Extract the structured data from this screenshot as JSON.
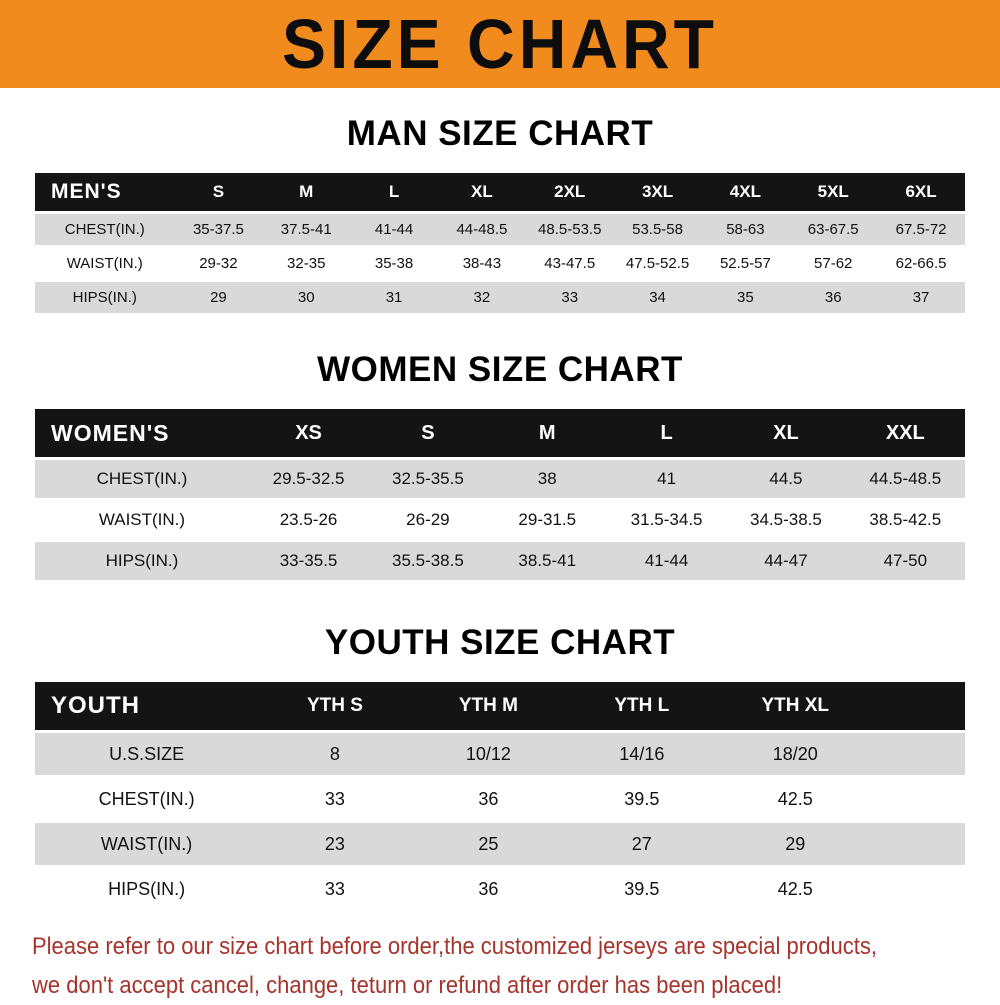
{
  "banner": {
    "title": "SIZE CHART",
    "bg_color": "#F28B1E",
    "text_color": "#0d0d0d"
  },
  "chart_data": [
    {
      "type": "table",
      "title": "MAN SIZE CHART",
      "header_label": "MEN'S",
      "columns": [
        "S",
        "M",
        "L",
        "XL",
        "2XL",
        "3XL",
        "4XL",
        "5XL",
        "6XL"
      ],
      "rows": [
        {
          "label": "CHEST(IN.)",
          "values": [
            "35-37.5",
            "37.5-41",
            "41-44",
            "44-48.5",
            "48.5-53.5",
            "53.5-58",
            "58-63",
            "63-67.5",
            "67.5-72"
          ]
        },
        {
          "label": "WAIST(IN.)",
          "values": [
            "29-32",
            "32-35",
            "35-38",
            "38-43",
            "43-47.5",
            "47.5-52.5",
            "52.5-57",
            "57-62",
            "62-66.5"
          ]
        },
        {
          "label": "HIPS(IN.)",
          "values": [
            "29",
            "30",
            "31",
            "32",
            "33",
            "34",
            "35",
            "36",
            "37"
          ]
        }
      ]
    },
    {
      "type": "table",
      "title": "WOMEN SIZE CHART",
      "header_label": "WOMEN'S",
      "columns": [
        "XS",
        "S",
        "M",
        "L",
        "XL",
        "XXL"
      ],
      "rows": [
        {
          "label": "CHEST(IN.)",
          "values": [
            "29.5-32.5",
            "32.5-35.5",
            "38",
            "41",
            "44.5",
            "44.5-48.5"
          ]
        },
        {
          "label": "WAIST(IN.)",
          "values": [
            "23.5-26",
            "26-29",
            "29-31.5",
            "31.5-34.5",
            "34.5-38.5",
            "38.5-42.5"
          ]
        },
        {
          "label": "HIPS(IN.)",
          "values": [
            "33-35.5",
            "35.5-38.5",
            "38.5-41",
            "41-44",
            "44-47",
            "47-50"
          ]
        }
      ]
    },
    {
      "type": "table",
      "title": "YOUTH SIZE CHART",
      "header_label": "YOUTH",
      "columns": [
        "YTH S",
        "YTH M",
        "YTH L",
        "YTH XL"
      ],
      "rows": [
        {
          "label": "U.S.SIZE",
          "values": [
            "8",
            "10/12",
            "14/16",
            "18/20"
          ]
        },
        {
          "label": "CHEST(IN.)",
          "values": [
            "33",
            "36",
            "39.5",
            "42.5"
          ]
        },
        {
          "label": "WAIST(IN.)",
          "values": [
            "23",
            "25",
            "27",
            "29"
          ]
        },
        {
          "label": "HIPS(IN.)",
          "values": [
            "33",
            "36",
            "39.5",
            "42.5"
          ]
        }
      ]
    }
  ],
  "colors": {
    "header_row_bg": "#141414",
    "stripe_row_bg": "#D9D9D9"
  },
  "footer": {
    "line1": "Please refer to our size chart before order,the customized jerseys are special products,",
    "line2": "we don't accept cancel, change, teturn or refund after order has been placed!",
    "text_color": "#A6342C"
  }
}
